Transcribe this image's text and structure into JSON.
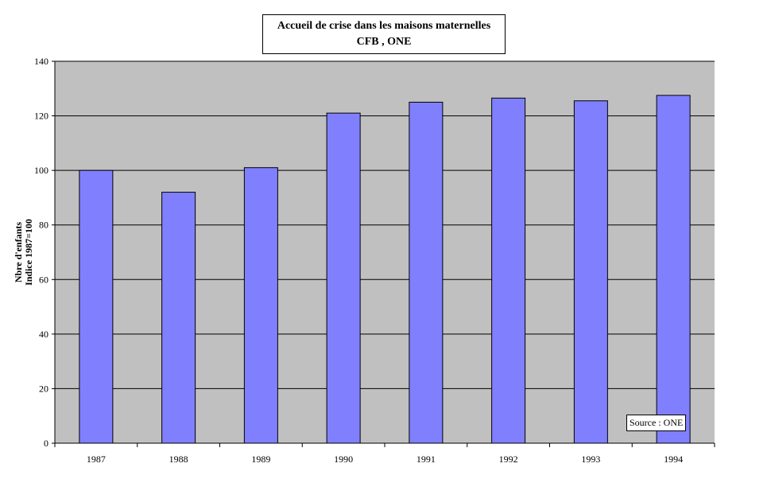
{
  "chart_data": {
    "type": "bar",
    "title": "Accueil de crise dans les maisons maternelles",
    "subtitle": "CFB , ONE",
    "ylabel_line1": "Nbre d'enfants",
    "ylabel_line2": "Indice 1987=100",
    "xlabel": "",
    "categories": [
      "1987",
      "1988",
      "1989",
      "1990",
      "1991",
      "1992",
      "1993",
      "1994"
    ],
    "values": [
      100,
      92,
      101,
      121,
      125,
      126.5,
      125.5,
      127.5
    ],
    "ylim": [
      0,
      140
    ],
    "yticks": [
      0,
      20,
      40,
      60,
      80,
      100,
      120,
      140
    ],
    "grid": true,
    "colors": {
      "bar": "#8080ff",
      "plot_bg": "#c0c0c0",
      "bar_stroke": "#000000"
    },
    "annotation": "Source : ONE"
  }
}
